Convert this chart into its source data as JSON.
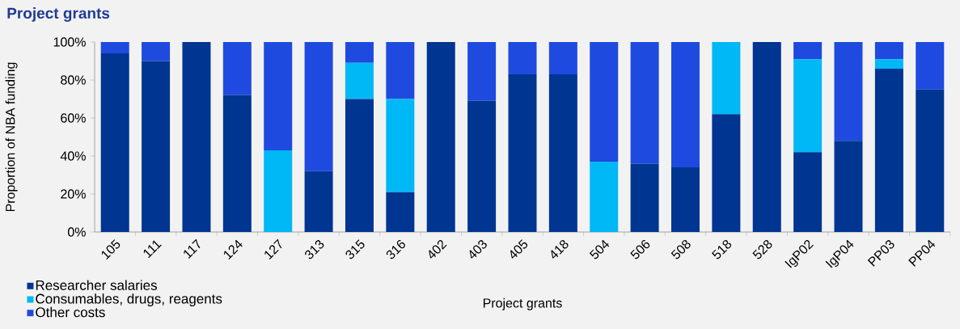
{
  "chart_data": {
    "type": "bar",
    "title": "Project grants",
    "xlabel": "Project grants",
    "ylabel": "Proportion of NBA funding",
    "categories": [
      "105",
      "111",
      "117",
      "124",
      "127",
      "313",
      "315",
      "316",
      "402",
      "403",
      "405",
      "418",
      "504",
      "506",
      "508",
      "518",
      "528",
      "IgP02",
      "IgP04",
      "PP03",
      "PP04"
    ],
    "stacked": true,
    "series": [
      {
        "name": "Researcher salaries",
        "color": "#003591",
        "values": [
          94,
          90,
          100,
          72,
          0,
          32,
          70,
          21,
          100,
          69,
          83,
          83,
          0,
          36,
          34,
          62,
          100,
          42,
          48,
          86,
          75
        ]
      },
      {
        "name": "Consumables, drugs, reagents",
        "color": "#00b8f5",
        "values": [
          0,
          0,
          0,
          0,
          43,
          0,
          19,
          49,
          0,
          0,
          0,
          0,
          37,
          0,
          0,
          38,
          0,
          49,
          0,
          5,
          0
        ]
      },
      {
        "name": "Other costs",
        "color": "#1f4ae0",
        "values": [
          6,
          10,
          0,
          28,
          57,
          68,
          11,
          30,
          0,
          31,
          17,
          17,
          63,
          64,
          66,
          0,
          0,
          9,
          52,
          9,
          25
        ]
      }
    ],
    "ylim": [
      0,
      100
    ],
    "yticks": [
      {
        "value": 0,
        "label": "0%"
      },
      {
        "value": 20,
        "label": "20%"
      },
      {
        "value": 40,
        "label": "40%"
      },
      {
        "value": 60,
        "label": "60%"
      },
      {
        "value": 80,
        "label": "80%"
      },
      {
        "value": 100,
        "label": "100%"
      }
    ],
    "grid": false,
    "legend": "bottom left"
  }
}
